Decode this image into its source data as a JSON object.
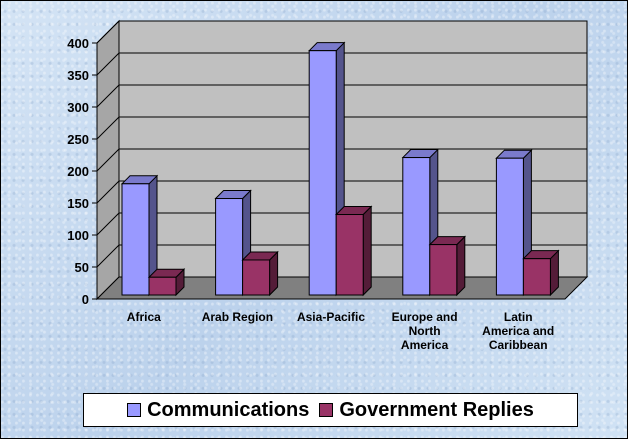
{
  "chart_data": {
    "type": "bar",
    "three_d": true,
    "categories": [
      "Africa",
      "Arab Region",
      "Asia-Pacific",
      "Europe and North America",
      "Latin America and Caribbean"
    ],
    "category_lines": [
      [
        "Africa"
      ],
      [
        "Arab Region"
      ],
      [
        "Asia-Pacific"
      ],
      [
        "Europe and",
        "North",
        "America"
      ],
      [
        "Latin",
        "America and",
        "Caribbean"
      ]
    ],
    "series": [
      {
        "name": "Communications",
        "values": [
          180,
          157,
          388,
          221,
          220
        ],
        "color": "#9999ff"
      },
      {
        "name": "Government Replies",
        "values": [
          34,
          61,
          132,
          85,
          63
        ],
        "color": "#993366"
      }
    ],
    "ylim": [
      0,
      400
    ],
    "yticks": [
      "0",
      "50",
      "100",
      "150",
      "200",
      "250",
      "300",
      "350",
      "400"
    ],
    "grid": true,
    "legend_position": "bottom",
    "title": "",
    "xlabel": "",
    "ylabel": ""
  }
}
